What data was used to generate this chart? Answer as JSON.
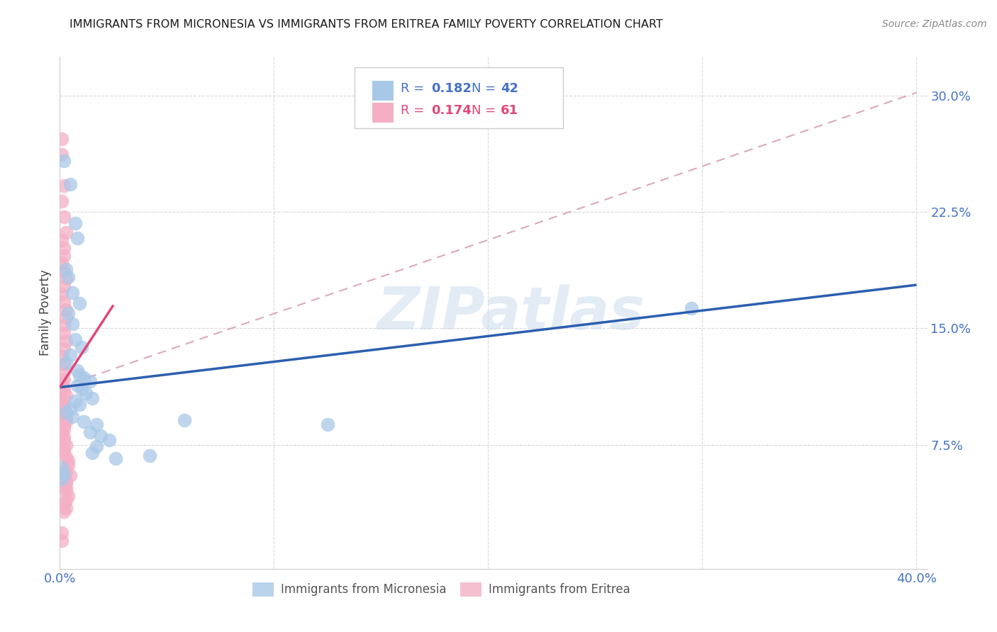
{
  "title": "IMMIGRANTS FROM MICRONESIA VS IMMIGRANTS FROM ERITREA FAMILY POVERTY CORRELATION CHART",
  "source": "Source: ZipAtlas.com",
  "ylabel": "Family Poverty",
  "xlim": [
    0.0,
    0.405
  ],
  "ylim": [
    -0.005,
    0.325
  ],
  "watermark": "ZIPatlas",
  "micronesia_color": "#a8c8e8",
  "eritrea_color": "#f4afc5",
  "micronesia_line_color": "#2b5faf",
  "eritrea_line_color": "#e04878",
  "dashed_line_color": "#d8a0b8",
  "grid_color": "#d8d8d8",
  "ytick_color": "#4472c4",
  "xtick_color": "#4472c4",
  "mic_x": [
    0.002,
    0.005,
    0.007,
    0.008,
    0.003,
    0.004,
    0.006,
    0.009,
    0.004,
    0.006,
    0.007,
    0.01,
    0.005,
    0.003,
    0.008,
    0.009,
    0.011,
    0.014,
    0.008,
    0.01,
    0.012,
    0.015,
    0.007,
    0.009,
    0.005,
    0.003,
    0.006,
    0.011,
    0.017,
    0.014,
    0.019,
    0.023,
    0.017,
    0.015,
    0.026,
    0.058,
    0.042,
    0.295,
    0.125,
    0.001,
    0.002,
    0.001
  ],
  "mic_y": [
    0.258,
    0.243,
    0.218,
    0.208,
    0.188,
    0.183,
    0.173,
    0.166,
    0.16,
    0.153,
    0.143,
    0.138,
    0.133,
    0.128,
    0.123,
    0.12,
    0.118,
    0.116,
    0.113,
    0.111,
    0.108,
    0.105,
    0.103,
    0.101,
    0.098,
    0.096,
    0.093,
    0.09,
    0.088,
    0.083,
    0.081,
    0.078,
    0.074,
    0.07,
    0.066,
    0.091,
    0.068,
    0.163,
    0.088,
    0.06,
    0.056,
    0.053
  ],
  "eri_x": [
    0.001,
    0.001,
    0.002,
    0.001,
    0.002,
    0.003,
    0.001,
    0.002,
    0.002,
    0.001,
    0.002,
    0.003,
    0.002,
    0.001,
    0.002,
    0.003,
    0.003,
    0.002,
    0.002,
    0.003,
    0.002,
    0.001,
    0.002,
    0.002,
    0.002,
    0.001,
    0.002,
    0.002,
    0.003,
    0.002,
    0.001,
    0.002,
    0.002,
    0.001,
    0.003,
    0.003,
    0.002,
    0.002,
    0.001,
    0.002,
    0.002,
    0.003,
    0.002,
    0.002,
    0.003,
    0.004,
    0.004,
    0.003,
    0.003,
    0.005,
    0.003,
    0.003,
    0.003,
    0.003,
    0.004,
    0.003,
    0.002,
    0.003,
    0.002,
    0.001,
    0.001
  ],
  "eri_y": [
    0.272,
    0.262,
    0.242,
    0.232,
    0.222,
    0.212,
    0.207,
    0.202,
    0.197,
    0.192,
    0.187,
    0.182,
    0.177,
    0.172,
    0.167,
    0.162,
    0.157,
    0.152,
    0.147,
    0.142,
    0.137,
    0.132,
    0.127,
    0.122,
    0.117,
    0.115,
    0.112,
    0.109,
    0.107,
    0.105,
    0.102,
    0.1,
    0.097,
    0.095,
    0.092,
    0.09,
    0.087,
    0.085,
    0.082,
    0.08,
    0.077,
    0.075,
    0.072,
    0.07,
    0.067,
    0.065,
    0.062,
    0.059,
    0.057,
    0.055,
    0.052,
    0.05,
    0.047,
    0.045,
    0.042,
    0.039,
    0.037,
    0.034,
    0.032,
    0.018,
    0.013
  ],
  "mic_line_x0": 0.0,
  "mic_line_y0": 0.112,
  "mic_line_x1": 0.4,
  "mic_line_y1": 0.178,
  "eri_line_x0": 0.0,
  "eri_line_y0": 0.112,
  "eri_line_x1": 0.025,
  "eri_line_y1": 0.165,
  "dash_line_x0": 0.0,
  "dash_line_y0": 0.112,
  "dash_line_x1": 0.4,
  "dash_line_y1": 0.302
}
